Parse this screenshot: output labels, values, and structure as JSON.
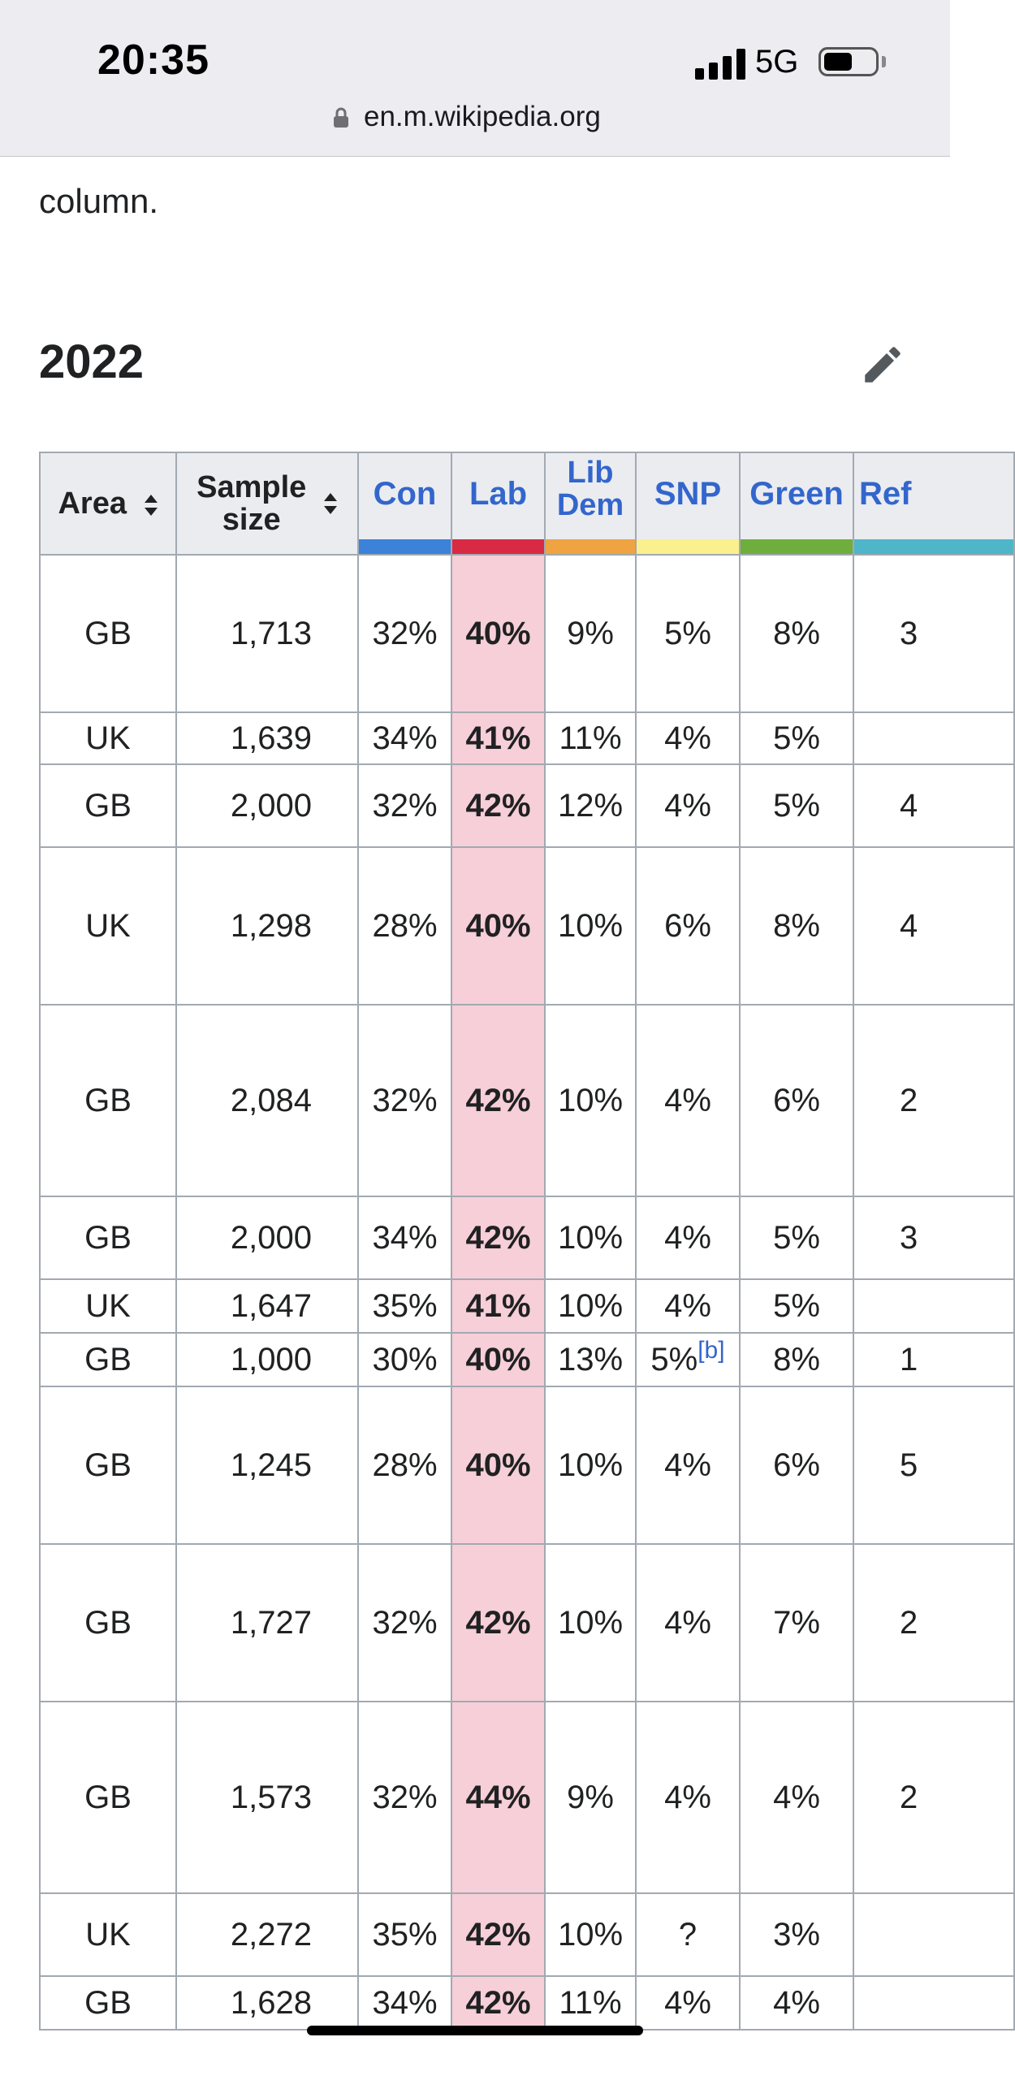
{
  "status_bar": {
    "time": "20:35",
    "network": "5G",
    "url": "en.m.wikipedia.org"
  },
  "article": {
    "intro_text": "column.",
    "section_title": "2022"
  },
  "table": {
    "headers": {
      "area": "Area",
      "sample_line1": "Sample",
      "sample_line2": "size",
      "con": "Con",
      "lab": "Lab",
      "libdem_line1": "Lib",
      "libdem_line2": "Dem",
      "snp": "SNP",
      "green": "Green",
      "ref": "Ref"
    },
    "party_colors": {
      "con": "#3b82d8",
      "lab": "#d92a44",
      "libdem": "#f0a341",
      "snp": "#fbf08e",
      "green": "#6fae3c",
      "ref": "#4fb6c9"
    },
    "rows": [
      {
        "area": "GB",
        "sample": "1,713",
        "con": "32%",
        "lab": "40%",
        "ld": "9%",
        "snp": "5%",
        "green": "8%",
        "ref": "3"
      },
      {
        "area": "UK",
        "sample": "1,639",
        "con": "34%",
        "lab": "41%",
        "ld": "11%",
        "snp": "4%",
        "green": "5%",
        "ref": ""
      },
      {
        "area": "GB",
        "sample": "2,000",
        "con": "32%",
        "lab": "42%",
        "ld": "12%",
        "snp": "4%",
        "green": "5%",
        "ref": "4"
      },
      {
        "area": "UK",
        "sample": "1,298",
        "con": "28%",
        "lab": "40%",
        "ld": "10%",
        "snp": "6%",
        "green": "8%",
        "ref": "4"
      },
      {
        "area": "GB",
        "sample": "2,084",
        "con": "32%",
        "lab": "42%",
        "ld": "10%",
        "snp": "4%",
        "green": "6%",
        "ref": "2"
      },
      {
        "area": "GB",
        "sample": "2,000",
        "con": "34%",
        "lab": "42%",
        "ld": "10%",
        "snp": "4%",
        "green": "5%",
        "ref": "3"
      },
      {
        "area": "UK",
        "sample": "1,647",
        "con": "35%",
        "lab": "41%",
        "ld": "10%",
        "snp": "4%",
        "green": "5%",
        "ref": ""
      },
      {
        "area": "GB",
        "sample": "1,000",
        "con": "30%",
        "lab": "40%",
        "ld": "13%",
        "snp": "5%",
        "snp_note": "[b]",
        "green": "8%",
        "ref": "1"
      },
      {
        "area": "GB",
        "sample": "1,245",
        "con": "28%",
        "lab": "40%",
        "ld": "10%",
        "snp": "4%",
        "green": "6%",
        "ref": "5"
      },
      {
        "area": "GB",
        "sample": "1,727",
        "con": "32%",
        "lab": "42%",
        "ld": "10%",
        "snp": "4%",
        "green": "7%",
        "ref": "2"
      },
      {
        "area": "GB",
        "sample": "1,573",
        "con": "32%",
        "lab": "44%",
        "ld": "9%",
        "snp": "4%",
        "green": "4%",
        "ref": "2"
      },
      {
        "area": "UK",
        "sample": "2,272",
        "con": "35%",
        "lab": "42%",
        "ld": "10%",
        "snp": "?",
        "green": "3%",
        "ref": ""
      },
      {
        "area": "GB",
        "sample": "1,628",
        "con": "34%",
        "lab": "42%",
        "ld": "11%",
        "snp": "4%",
        "green": "4%",
        "ref": ""
      }
    ]
  }
}
